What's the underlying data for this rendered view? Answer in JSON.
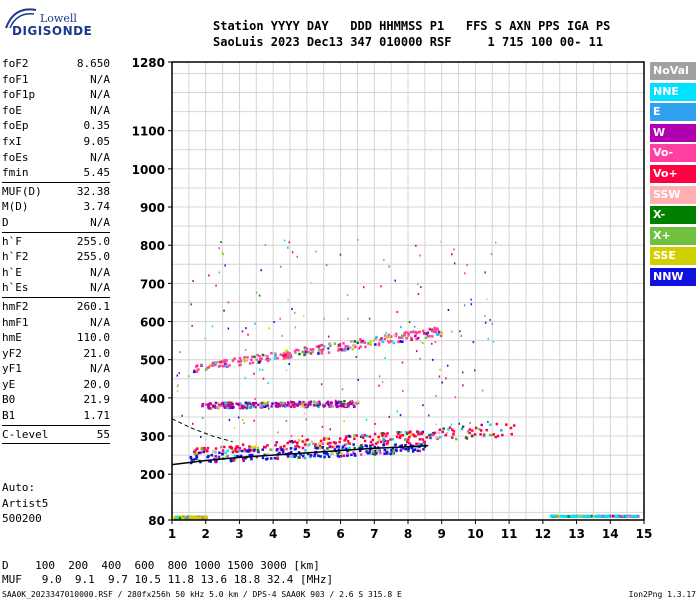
{
  "logo": {
    "line1": "Lowell",
    "line2": "DIGISONDE"
  },
  "header": {
    "line1": "Station YYYY DAY   DDD HHMMSS P1   FFS S AXN PPS IGA PS",
    "line2": "SaoLuis 2023 Dec13 347 010000 RSF     1 715 100 00- 11"
  },
  "params": [
    {
      "name": "foF2",
      "value": "8.650"
    },
    {
      "name": "foF1",
      "value": "N/A"
    },
    {
      "name": "foF1p",
      "value": "N/A"
    },
    {
      "name": "foE",
      "value": "N/A"
    },
    {
      "name": "foEp",
      "value": "0.35"
    },
    {
      "name": "fxI",
      "value": "9.05"
    },
    {
      "name": "foEs",
      "value": "N/A"
    },
    {
      "name": "fmin",
      "value": "5.45"
    },
    {
      "sep": true
    },
    {
      "name": "MUF(D)",
      "value": "32.38"
    },
    {
      "name": "M(D)",
      "value": "3.74"
    },
    {
      "name": "D",
      "value": "N/A"
    },
    {
      "sep": true
    },
    {
      "name": "h`F",
      "value": "255.0"
    },
    {
      "name": "h`F2",
      "value": "255.0"
    },
    {
      "name": "h`E",
      "value": "N/A"
    },
    {
      "name": "h`Es",
      "value": "N/A"
    },
    {
      "sep": true
    },
    {
      "name": "hmF2",
      "value": "260.1"
    },
    {
      "name": "hmF1",
      "value": "N/A"
    },
    {
      "name": "hmE",
      "value": "110.0"
    },
    {
      "name": "yF2",
      "value": "21.0"
    },
    {
      "name": "yF1",
      "value": "N/A"
    },
    {
      "name": "yE",
      "value": "20.0"
    },
    {
      "name": "B0",
      "value": "21.9"
    },
    {
      "name": "B1",
      "value": "1.71"
    },
    {
      "sep": true
    },
    {
      "name": "C-level",
      "value": "55"
    },
    {
      "sep": true
    }
  ],
  "auto": {
    "line1": "Auto:",
    "line2": "Artist5",
    "line3": "500200"
  },
  "legend": [
    {
      "label": "NoVal",
      "color": "#a0a0a0"
    },
    {
      "label": "NNE",
      "color": "#00e0ff"
    },
    {
      "label": "E",
      "color": "#30a0f0"
    },
    {
      "label": "W",
      "color": "#b000b0"
    },
    {
      "label": "Vo-",
      "color": "#ff40a0"
    },
    {
      "label": "Vo+",
      "color": "#ff0040"
    },
    {
      "label": "SSW",
      "color": "#ffb0b0"
    },
    {
      "label": "X-",
      "color": "#008000"
    },
    {
      "label": "X+",
      "color": "#70c040"
    },
    {
      "label": "SSE",
      "color": "#d0d000"
    },
    {
      "label": "NNW",
      "color": "#1010e0"
    }
  ],
  "footer": {
    "d_row": "D    100  200  400  600  800 1000 1500 3000 [km]",
    "muf_row": "MUF   9.0  9.1  9.7 10.5 11.8 13.6 18.8 32.4 [MHz]",
    "info": "SAA0K_2023347010000.RSF / 280fx256h 50 kHz 5.0 km / DPS-4 SAA0K 903 / 2.6 S 315.8 E",
    "version": "Ion2Png 1.3.17"
  },
  "chart_data": {
    "type": "scatter",
    "x_ticks": [
      1,
      2,
      3,
      4,
      5,
      6,
      7,
      8,
      9,
      10,
      11,
      12,
      13,
      14,
      15
    ],
    "y_ticks": [
      80,
      200,
      300,
      400,
      500,
      600,
      700,
      800,
      900,
      1000,
      1100,
      1280
    ],
    "xlim": [
      1,
      15
    ],
    "ylim": [
      80,
      1280
    ],
    "grid": true,
    "trace_profile": {
      "x": [
        1.0,
        2.0,
        3.0,
        4.0,
        5.0,
        6.0,
        7.0,
        8.0,
        8.6
      ],
      "y": [
        225,
        236,
        244,
        250,
        256,
        262,
        268,
        272,
        275
      ]
    },
    "trace_upper": {
      "x": [
        1.0,
        1.6,
        2.2,
        2.8
      ],
      "y": [
        345,
        320,
        300,
        285
      ]
    },
    "echo_clusters": [
      {
        "name": "F-trace O",
        "x": [
          1.6,
          11.2
        ],
        "y_start": [
          255,
          300
        ],
        "y_end": [
          270,
          340
        ],
        "color": "#ff0040"
      },
      {
        "name": "F-trace low",
        "x": [
          1.5,
          8.5
        ],
        "y_start": [
          232,
          260
        ],
        "y_end": [
          262,
          285
        ],
        "color": "#1010e0"
      },
      {
        "name": "2-hop",
        "x": [
          1.6,
          9.0
        ],
        "y_start": [
          470,
          565
        ],
        "y_end": [
          490,
          590
        ],
        "color": "#ff40a0"
      },
      {
        "name": "3-hop",
        "x": [
          1.8,
          6.5
        ],
        "y_start": [
          375,
          380
        ],
        "y_end": [
          390,
          395
        ],
        "color": "#b000b0"
      },
      {
        "name": "E-region",
        "x": [
          1.05,
          2.0
        ],
        "y_start": [
          88,
          88
        ],
        "y_end": [
          92,
          92
        ],
        "color": "#d0d000"
      },
      {
        "name": "far",
        "x": [
          12.2,
          14.8
        ],
        "y_start": [
          92,
          92
        ],
        "y_end": [
          94,
          94
        ],
        "color": "#00e0ff"
      }
    ]
  }
}
